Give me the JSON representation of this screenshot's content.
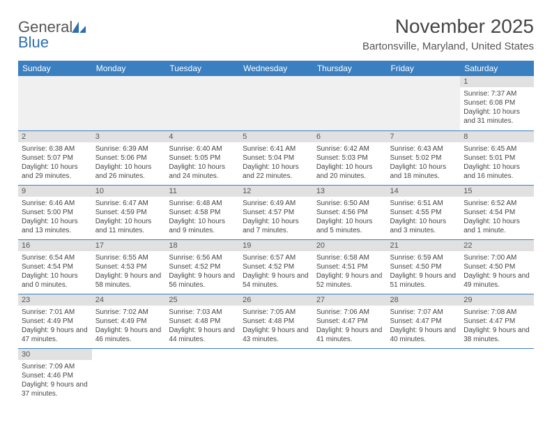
{
  "colors": {
    "header_bg": "#3a7fc0",
    "header_text": "#ffffff",
    "daynum_bg": "#e1e1e1",
    "empty_bg": "#f0f0f0",
    "row_border": "#3a7fc0",
    "body_text": "#444444",
    "logo_gray": "#555555",
    "logo_blue": "#2c6fb0"
  },
  "logo": {
    "part1": "General",
    "part2": "Blue"
  },
  "title": "November 2025",
  "location": "Bartonsville, Maryland, United States",
  "day_headers": [
    "Sunday",
    "Monday",
    "Tuesday",
    "Wednesday",
    "Thursday",
    "Friday",
    "Saturday"
  ],
  "weeks": [
    [
      null,
      null,
      null,
      null,
      null,
      null,
      {
        "n": "1",
        "sunrise": "Sunrise: 7:37 AM",
        "sunset": "Sunset: 6:08 PM",
        "daylight": "Daylight: 10 hours and 31 minutes."
      }
    ],
    [
      {
        "n": "2",
        "sunrise": "Sunrise: 6:38 AM",
        "sunset": "Sunset: 5:07 PM",
        "daylight": "Daylight: 10 hours and 29 minutes."
      },
      {
        "n": "3",
        "sunrise": "Sunrise: 6:39 AM",
        "sunset": "Sunset: 5:06 PM",
        "daylight": "Daylight: 10 hours and 26 minutes."
      },
      {
        "n": "4",
        "sunrise": "Sunrise: 6:40 AM",
        "sunset": "Sunset: 5:05 PM",
        "daylight": "Daylight: 10 hours and 24 minutes."
      },
      {
        "n": "5",
        "sunrise": "Sunrise: 6:41 AM",
        "sunset": "Sunset: 5:04 PM",
        "daylight": "Daylight: 10 hours and 22 minutes."
      },
      {
        "n": "6",
        "sunrise": "Sunrise: 6:42 AM",
        "sunset": "Sunset: 5:03 PM",
        "daylight": "Daylight: 10 hours and 20 minutes."
      },
      {
        "n": "7",
        "sunrise": "Sunrise: 6:43 AM",
        "sunset": "Sunset: 5:02 PM",
        "daylight": "Daylight: 10 hours and 18 minutes."
      },
      {
        "n": "8",
        "sunrise": "Sunrise: 6:45 AM",
        "sunset": "Sunset: 5:01 PM",
        "daylight": "Daylight: 10 hours and 16 minutes."
      }
    ],
    [
      {
        "n": "9",
        "sunrise": "Sunrise: 6:46 AM",
        "sunset": "Sunset: 5:00 PM",
        "daylight": "Daylight: 10 hours and 13 minutes."
      },
      {
        "n": "10",
        "sunrise": "Sunrise: 6:47 AM",
        "sunset": "Sunset: 4:59 PM",
        "daylight": "Daylight: 10 hours and 11 minutes."
      },
      {
        "n": "11",
        "sunrise": "Sunrise: 6:48 AM",
        "sunset": "Sunset: 4:58 PM",
        "daylight": "Daylight: 10 hours and 9 minutes."
      },
      {
        "n": "12",
        "sunrise": "Sunrise: 6:49 AM",
        "sunset": "Sunset: 4:57 PM",
        "daylight": "Daylight: 10 hours and 7 minutes."
      },
      {
        "n": "13",
        "sunrise": "Sunrise: 6:50 AM",
        "sunset": "Sunset: 4:56 PM",
        "daylight": "Daylight: 10 hours and 5 minutes."
      },
      {
        "n": "14",
        "sunrise": "Sunrise: 6:51 AM",
        "sunset": "Sunset: 4:55 PM",
        "daylight": "Daylight: 10 hours and 3 minutes."
      },
      {
        "n": "15",
        "sunrise": "Sunrise: 6:52 AM",
        "sunset": "Sunset: 4:54 PM",
        "daylight": "Daylight: 10 hours and 1 minute."
      }
    ],
    [
      {
        "n": "16",
        "sunrise": "Sunrise: 6:54 AM",
        "sunset": "Sunset: 4:54 PM",
        "daylight": "Daylight: 10 hours and 0 minutes."
      },
      {
        "n": "17",
        "sunrise": "Sunrise: 6:55 AM",
        "sunset": "Sunset: 4:53 PM",
        "daylight": "Daylight: 9 hours and 58 minutes."
      },
      {
        "n": "18",
        "sunrise": "Sunrise: 6:56 AM",
        "sunset": "Sunset: 4:52 PM",
        "daylight": "Daylight: 9 hours and 56 minutes."
      },
      {
        "n": "19",
        "sunrise": "Sunrise: 6:57 AM",
        "sunset": "Sunset: 4:52 PM",
        "daylight": "Daylight: 9 hours and 54 minutes."
      },
      {
        "n": "20",
        "sunrise": "Sunrise: 6:58 AM",
        "sunset": "Sunset: 4:51 PM",
        "daylight": "Daylight: 9 hours and 52 minutes."
      },
      {
        "n": "21",
        "sunrise": "Sunrise: 6:59 AM",
        "sunset": "Sunset: 4:50 PM",
        "daylight": "Daylight: 9 hours and 51 minutes."
      },
      {
        "n": "22",
        "sunrise": "Sunrise: 7:00 AM",
        "sunset": "Sunset: 4:50 PM",
        "daylight": "Daylight: 9 hours and 49 minutes."
      }
    ],
    [
      {
        "n": "23",
        "sunrise": "Sunrise: 7:01 AM",
        "sunset": "Sunset: 4:49 PM",
        "daylight": "Daylight: 9 hours and 47 minutes."
      },
      {
        "n": "24",
        "sunrise": "Sunrise: 7:02 AM",
        "sunset": "Sunset: 4:49 PM",
        "daylight": "Daylight: 9 hours and 46 minutes."
      },
      {
        "n": "25",
        "sunrise": "Sunrise: 7:03 AM",
        "sunset": "Sunset: 4:48 PM",
        "daylight": "Daylight: 9 hours and 44 minutes."
      },
      {
        "n": "26",
        "sunrise": "Sunrise: 7:05 AM",
        "sunset": "Sunset: 4:48 PM",
        "daylight": "Daylight: 9 hours and 43 minutes."
      },
      {
        "n": "27",
        "sunrise": "Sunrise: 7:06 AM",
        "sunset": "Sunset: 4:47 PM",
        "daylight": "Daylight: 9 hours and 41 minutes."
      },
      {
        "n": "28",
        "sunrise": "Sunrise: 7:07 AM",
        "sunset": "Sunset: 4:47 PM",
        "daylight": "Daylight: 9 hours and 40 minutes."
      },
      {
        "n": "29",
        "sunrise": "Sunrise: 7:08 AM",
        "sunset": "Sunset: 4:47 PM",
        "daylight": "Daylight: 9 hours and 38 minutes."
      }
    ],
    [
      {
        "n": "30",
        "sunrise": "Sunrise: 7:09 AM",
        "sunset": "Sunset: 4:46 PM",
        "daylight": "Daylight: 9 hours and 37 minutes."
      },
      null,
      null,
      null,
      null,
      null,
      null
    ]
  ]
}
